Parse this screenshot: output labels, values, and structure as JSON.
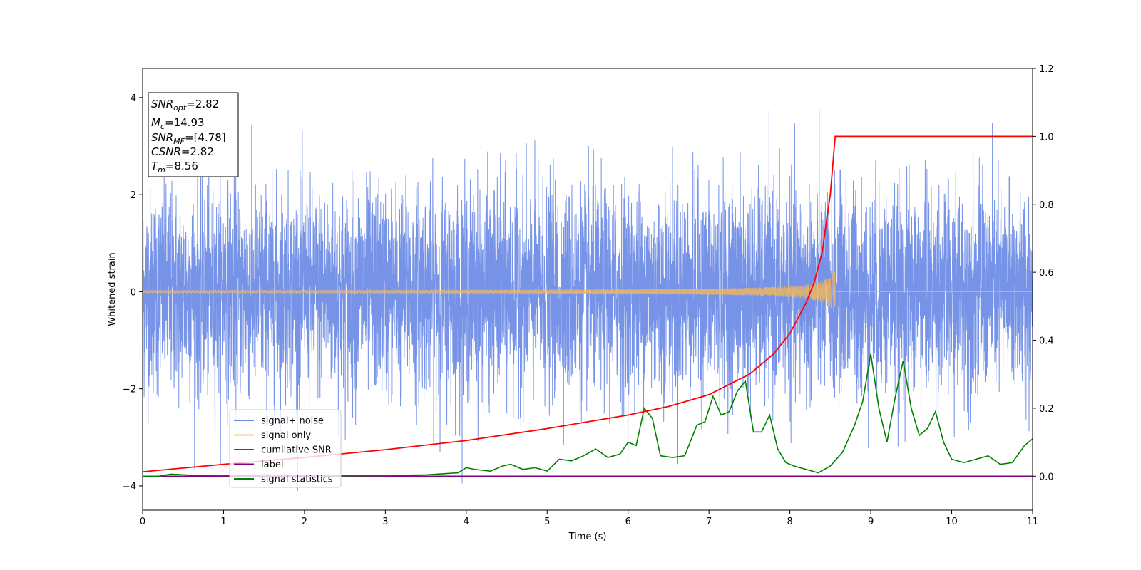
{
  "chart_data": {
    "type": "line",
    "xlabel": "Time (s)",
    "ylabel_left": "Whitened strain",
    "xlim": [
      0,
      11
    ],
    "ylim_left": [
      -4.5,
      4.6
    ],
    "ylim_right": [
      -0.1,
      1.2
    ],
    "x_ticks": [
      "0",
      "1",
      "2",
      "3",
      "4",
      "5",
      "6",
      "7",
      "8",
      "9",
      "10",
      "11"
    ],
    "y_left_ticks": [
      "−4",
      "−2",
      "0",
      "2",
      "4"
    ],
    "y_right_ticks": [
      "0.0",
      "0.2",
      "0.4",
      "0.6",
      "0.8",
      "1.0",
      "1.2"
    ],
    "grid": false,
    "legend_position": "lower-left",
    "info_box": {
      "snr_opt": "=2.82",
      "mc": "=14.93",
      "snr_mf": "=[4.78]",
      "csnr": "=2.82",
      "tm": "=8.56"
    },
    "series": [
      {
        "name": "signal+ noise",
        "axis": "left",
        "color": "#6f8de6",
        "description_range": [
          -4.1,
          4.15
        ]
      },
      {
        "name": "signal only",
        "axis": "left",
        "color": "#f5b85a",
        "merger_time": 8.56,
        "peak_amplitude": 0.52
      },
      {
        "name": "cumilative SNR",
        "axis": "right",
        "color": "#ff0000",
        "x": [
          0,
          1,
          2,
          3,
          4,
          5,
          6,
          6.5,
          7,
          7.5,
          7.8,
          8.0,
          8.2,
          8.3,
          8.4,
          8.5,
          8.56,
          11
        ],
        "y": [
          0.013,
          0.035,
          0.055,
          0.078,
          0.105,
          0.14,
          0.18,
          0.205,
          0.24,
          0.3,
          0.36,
          0.42,
          0.51,
          0.57,
          0.66,
          0.83,
          1.0,
          1.0
        ]
      },
      {
        "name": "label",
        "axis": "right",
        "color": "#800080",
        "x": [
          0,
          11
        ],
        "y": [
          0,
          0
        ]
      },
      {
        "name": "signal statistics",
        "axis": "right",
        "color": "#008000",
        "x": [
          0,
          0.2,
          0.35,
          0.6,
          1,
          1.5,
          2,
          2.5,
          3,
          3.5,
          3.9,
          4.0,
          4.1,
          4.3,
          4.45,
          4.55,
          4.7,
          4.85,
          5.0,
          5.15,
          5.3,
          5.45,
          5.6,
          5.75,
          5.9,
          6.0,
          6.1,
          6.2,
          6.3,
          6.4,
          6.55,
          6.7,
          6.85,
          6.95,
          7.05,
          7.15,
          7.25,
          7.35,
          7.45,
          7.55,
          7.65,
          7.75,
          7.85,
          7.95,
          8.05,
          8.2,
          8.35,
          8.5,
          8.65,
          8.8,
          8.9,
          9.0,
          9.1,
          9.2,
          9.3,
          9.4,
          9.5,
          9.6,
          9.7,
          9.8,
          9.9,
          10.0,
          10.15,
          10.3,
          10.45,
          10.6,
          10.75,
          10.9,
          11.0
        ],
        "y": [
          0.0,
          0.0,
          0.006,
          0.003,
          0.002,
          0.004,
          0.003,
          0.001,
          0.002,
          0.004,
          0.01,
          0.025,
          0.02,
          0.015,
          0.03,
          0.035,
          0.02,
          0.025,
          0.015,
          0.05,
          0.045,
          0.06,
          0.08,
          0.055,
          0.065,
          0.1,
          0.09,
          0.2,
          0.17,
          0.06,
          0.055,
          0.06,
          0.15,
          0.16,
          0.235,
          0.18,
          0.19,
          0.25,
          0.28,
          0.13,
          0.13,
          0.18,
          0.08,
          0.04,
          0.03,
          0.02,
          0.01,
          0.03,
          0.07,
          0.15,
          0.22,
          0.36,
          0.2,
          0.1,
          0.23,
          0.34,
          0.2,
          0.12,
          0.14,
          0.19,
          0.1,
          0.05,
          0.04,
          0.05,
          0.06,
          0.035,
          0.04,
          0.09,
          0.11
        ]
      }
    ]
  }
}
